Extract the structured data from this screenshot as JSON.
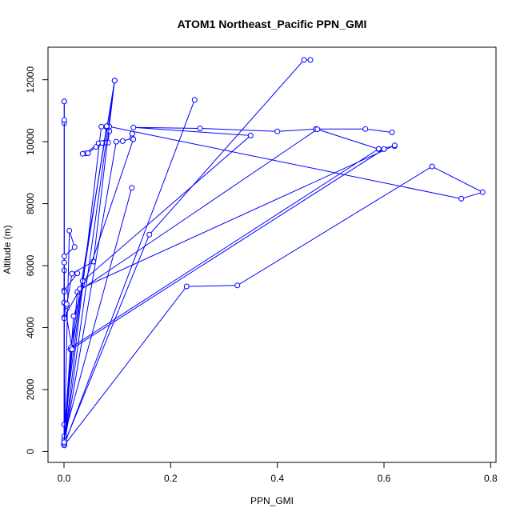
{
  "chart_data": {
    "type": "line",
    "title": "ATOM1 Northeast_Pacific PPN_GMI",
    "xlabel": "PPN_GMI",
    "ylabel": "Altitude (m)",
    "xlim": [
      -0.03,
      0.81
    ],
    "ylim": [
      -350,
      13050
    ],
    "xticks": [
      0,
      0.2,
      0.4,
      0.6,
      0.8
    ],
    "xtick_labels": [
      "0.0",
      "0.2",
      "0.4",
      "0.6",
      "0.8"
    ],
    "yticks": [
      0,
      2000,
      4000,
      6000,
      8000,
      10000,
      12000
    ],
    "ytick_labels": [
      "0",
      "2000",
      "4000",
      "6000",
      "8000",
      "10000",
      "12000"
    ],
    "grid": false,
    "line_color": "#0000ff",
    "series": [
      {
        "x": [
          0.0005,
          0.0005,
          0.0005,
          0.0005
        ],
        "y": [
          200,
          11300,
          10600,
          210
        ]
      },
      {
        "x": [
          0.0005,
          0.0005,
          0.0005
        ],
        "y": [
          230,
          10700,
          11300
        ]
      },
      {
        "x": [
          0.0005,
          0.01,
          0.02,
          0.0005,
          0.0005
        ],
        "y": [
          250,
          7130,
          6600,
          6300,
          210
        ]
      },
      {
        "x": [
          0.0005,
          0.095
        ],
        "y": [
          220,
          11970
        ]
      },
      {
        "x": [
          0.0005,
          0.245
        ],
        "y": [
          220,
          11350
        ]
      },
      {
        "x": [
          0.0005,
          0.098,
          0.11,
          0.128,
          0.128
        ],
        "y": [
          230,
          10000,
          10020,
          10110,
          10260
        ]
      },
      {
        "x": [
          0.0005,
          0.07,
          0.085,
          0.083,
          0.065,
          0.04
        ],
        "y": [
          240,
          10490,
          10340,
          9970,
          9950,
          9620
        ]
      },
      {
        "x": [
          0.0005,
          0.16,
          0.45,
          0.462
        ],
        "y": [
          250,
          7000,
          12640,
          12640
        ]
      },
      {
        "x": [
          0.0005,
          0.23,
          0.325,
          0.69,
          0.785,
          0.745,
          0.085,
          0.08,
          0.076,
          0.072,
          0.06,
          0.045,
          0.035
        ],
        "y": [
          200,
          5330,
          5360,
          9200,
          8370,
          8160,
          10490,
          10500,
          9970,
          9960,
          9830,
          9630,
          9610
        ]
      },
      {
        "x": [
          0.005,
          0.015,
          0.055,
          0.095
        ],
        "y": [
          4700,
          5740,
          6130,
          11970
        ]
      },
      {
        "x": [
          0.0005,
          0.012,
          0.095
        ],
        "y": [
          400,
          3300,
          11970
        ]
      },
      {
        "x": [
          0.0005,
          0.035,
          0.35,
          0.13,
          0.255,
          0.4,
          0.472,
          0.565,
          0.615
        ],
        "y": [
          870,
          5500,
          10200,
          10460,
          10430,
          10330,
          10410,
          10410,
          10300
        ]
      },
      {
        "x": [
          0.0005,
          0.025,
          0.475,
          0.59,
          0.62
        ],
        "y": [
          300,
          5150,
          10400,
          9760,
          9860
        ]
      },
      {
        "x": [
          0.0005,
          0.03,
          0.62
        ],
        "y": [
          4330,
          5250,
          9880
        ]
      },
      {
        "x": [
          0.0005,
          0.015,
          0.0005,
          0.0005,
          0.025
        ],
        "y": [
          380,
          3330,
          4800,
          5200,
          5750
        ]
      },
      {
        "x": [
          0.0005,
          0.127
        ],
        "y": [
          500,
          8510
        ]
      },
      {
        "x": [
          0.0005,
          0.018,
          0.13
        ],
        "y": [
          270,
          4370,
          10080
        ]
      },
      {
        "x": [
          0.0005,
          0.0005,
          0.0005,
          0.0005,
          0.0005,
          0.005
        ],
        "y": [
          4300,
          5850,
          6100,
          5160,
          4810,
          4760
        ]
      },
      {
        "x": [
          0.0005,
          0.015,
          0.6
        ],
        "y": [
          250,
          3320,
          9760
        ]
      },
      {
        "x": [
          0.013,
          0.59
        ],
        "y": [
          3360,
          9770
        ]
      },
      {
        "x": [
          0.0005,
          0.015,
          0.08
        ],
        "y": [
          250,
          3300,
          10500
        ]
      },
      {
        "x": [
          0.0005,
          0.0005
        ],
        "y": [
          300,
          6100
        ]
      }
    ]
  }
}
